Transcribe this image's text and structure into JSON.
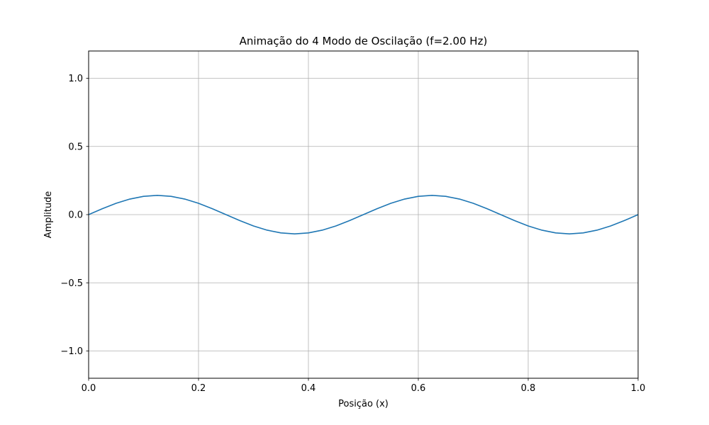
{
  "chart_data": {
    "type": "line",
    "title": "Animação do 4 Modo de Oscilação (f=2.00 Hz)",
    "xlabel": "Posição (x)",
    "ylabel": "Amplitude",
    "xlim": [
      0.0,
      1.0
    ],
    "ylim": [
      -1.2,
      1.2
    ],
    "x_ticks": [
      0.0,
      0.2,
      0.4,
      0.6,
      0.8,
      1.0
    ],
    "y_ticks": [
      -1.0,
      -0.5,
      0.0,
      0.5,
      1.0
    ],
    "x_tick_labels": [
      "0.0",
      "0.2",
      "0.4",
      "0.6",
      "0.8",
      "1.0"
    ],
    "y_tick_labels": [
      "−1.0",
      "−0.5",
      "0.0",
      "0.5",
      "1.0"
    ],
    "grid": true,
    "series": [
      {
        "color": "#1f77b4",
        "x": [
          0.0,
          0.025,
          0.05,
          0.075,
          0.1,
          0.125,
          0.15,
          0.175,
          0.2,
          0.225,
          0.25,
          0.275,
          0.3,
          0.325,
          0.35,
          0.375,
          0.4,
          0.425,
          0.45,
          0.475,
          0.5,
          0.525,
          0.55,
          0.575,
          0.6,
          0.625,
          0.65,
          0.675,
          0.7,
          0.725,
          0.75,
          0.775,
          0.8,
          0.825,
          0.85,
          0.875,
          0.9,
          0.925,
          0.95,
          0.975,
          1.0
        ],
        "y": [
          0.0,
          0.0436,
          0.0829,
          0.1141,
          0.1341,
          0.141,
          0.1341,
          0.1141,
          0.0829,
          0.0436,
          0.0,
          -0.0436,
          -0.0829,
          -0.1141,
          -0.1341,
          -0.141,
          -0.1341,
          -0.1141,
          -0.0829,
          -0.0436,
          0.0,
          0.0436,
          0.0829,
          0.1141,
          0.1341,
          0.141,
          0.1341,
          0.1141,
          0.0829,
          0.0436,
          0.0,
          -0.0436,
          -0.0829,
          -0.1141,
          -0.1341,
          -0.141,
          -0.1341,
          -0.1141,
          -0.0829,
          -0.0436,
          0.0
        ]
      }
    ]
  }
}
